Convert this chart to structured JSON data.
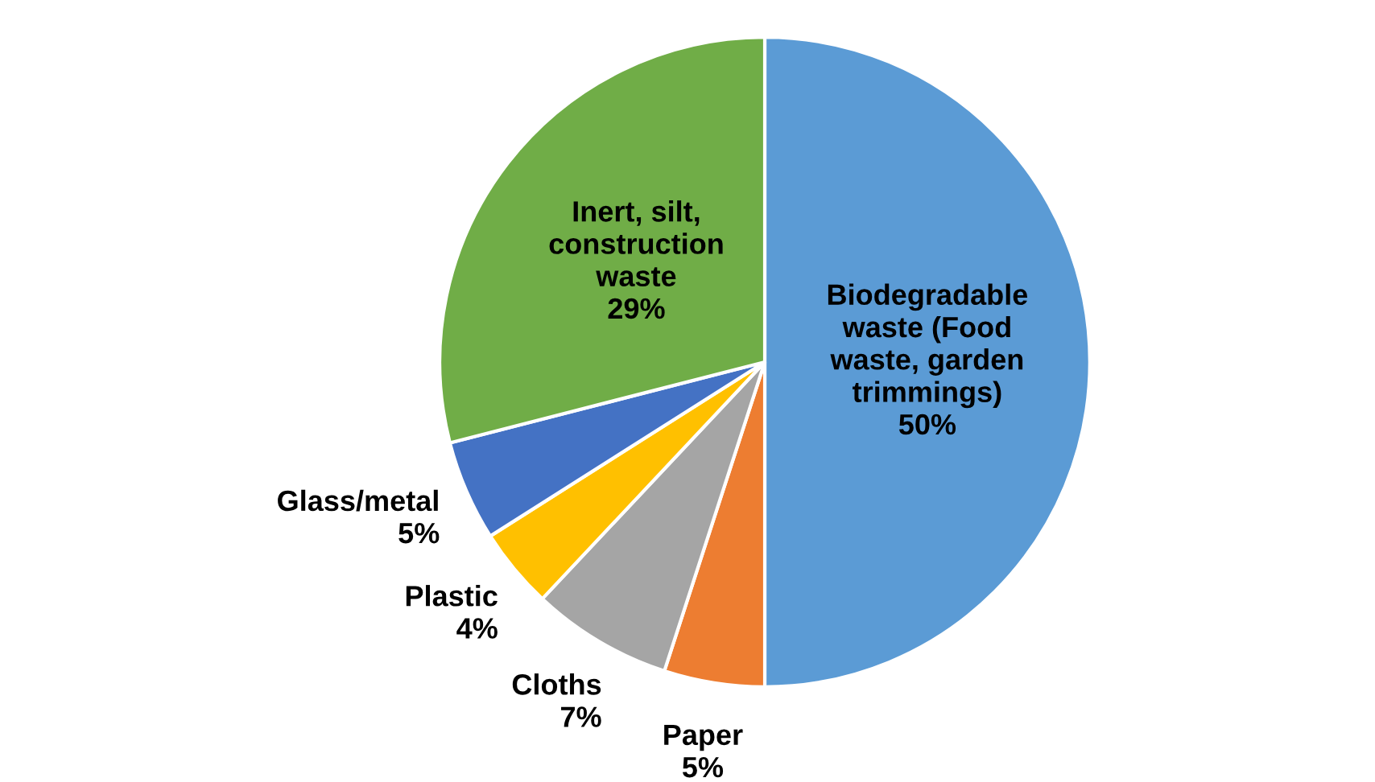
{
  "chart_data": {
    "type": "pie",
    "categories": [
      "Biodegradable\nwaste (Food\nwaste, garden\ntrimmings)",
      "Paper",
      "Cloths",
      "Plastic",
      "Glass/metal",
      "Inert, silt,\nconstruction\nwaste"
    ],
    "values": [
      50,
      5,
      7,
      4,
      5,
      29
    ],
    "value_labels": [
      "50%",
      "5%",
      "7%",
      "4%",
      "5%",
      "29%"
    ],
    "colors": [
      "#5b9bd5",
      "#ed7d31",
      "#a5a5a5",
      "#ffc000",
      "#4472c4",
      "#70ad47"
    ]
  }
}
